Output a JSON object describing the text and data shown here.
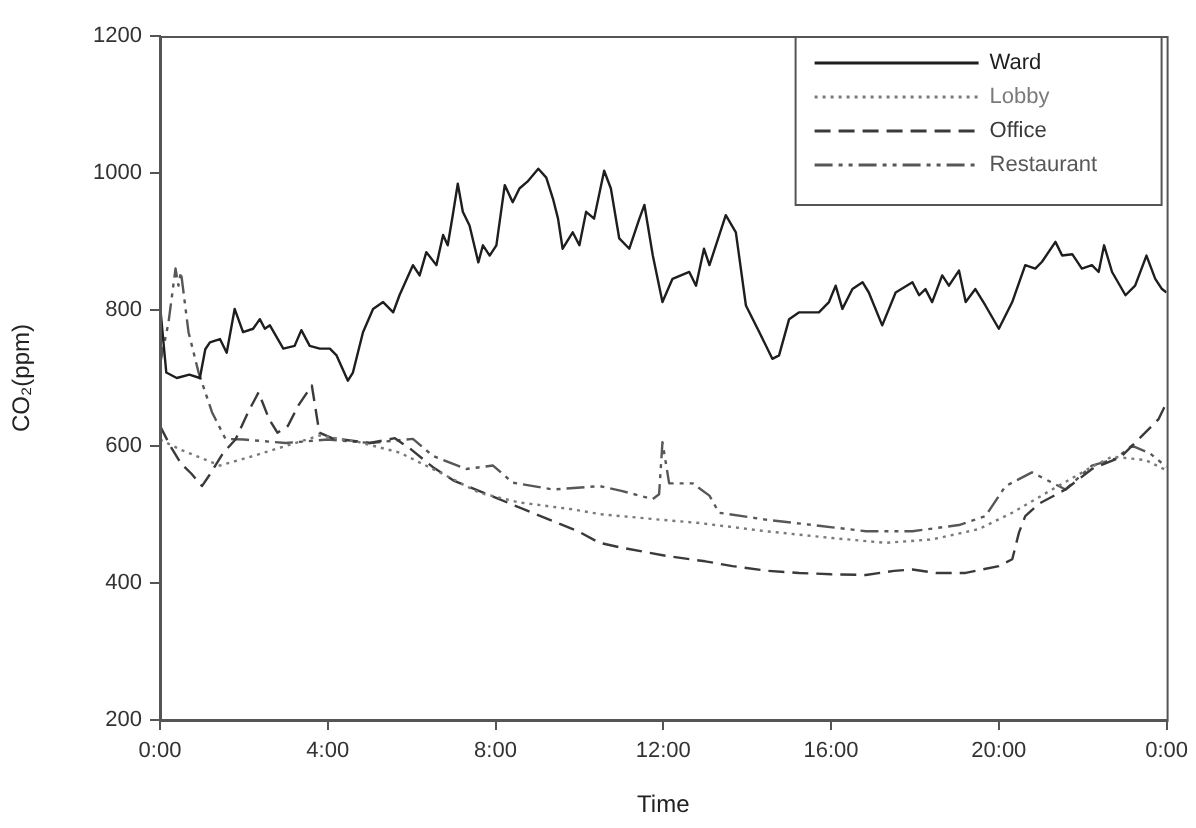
{
  "chart_data": {
    "type": "line",
    "xlabel": "Time",
    "ylabel": "CO₂(ppm)",
    "legend": "top right",
    "xlim": [
      0,
      24
    ],
    "xticks": [
      {
        "value": 0,
        "label": "0:00"
      },
      {
        "value": 4,
        "label": "4:00"
      },
      {
        "value": 8,
        "label": "8:00"
      },
      {
        "value": 12,
        "label": "12:00"
      },
      {
        "value": 16,
        "label": "16:00"
      },
      {
        "value": 20,
        "label": "20:00"
      },
      {
        "value": 24,
        "label": "0:00"
      }
    ],
    "ylim": [
      200,
      1200
    ],
    "yticks": [
      200,
      400,
      600,
      800,
      1000,
      1200
    ],
    "series": [
      {
        "name": "Ward",
        "color": "#1e1e1e",
        "line_style": "solid",
        "x": [
          0,
          0.15,
          0.4,
          0.7,
          0.95,
          1.08,
          1.19,
          1.43,
          1.59,
          1.78,
          1.98,
          2.22,
          2.38,
          2.5,
          2.62,
          2.94,
          3.21,
          3.37,
          3.57,
          3.81,
          4.05,
          4.21,
          4.48,
          4.6,
          4.84,
          5.08,
          5.32,
          5.56,
          5.71,
          6.03,
          6.19,
          6.35,
          6.59,
          6.75,
          6.86,
          6.98,
          7.1,
          7.22,
          7.38,
          7.59,
          7.7,
          7.86,
          8.02,
          8.22,
          8.41,
          8.57,
          8.76,
          9.02,
          9.21,
          9.37,
          9.49,
          9.6,
          9.84,
          10,
          10.16,
          10.35,
          10.59,
          10.75,
          10.95,
          11.19,
          11.43,
          11.55,
          11.75,
          11.98,
          12.22,
          12.62,
          12.78,
          12.97,
          13.1,
          13.49,
          13.73,
          13.97,
          14.29,
          14.6,
          14.76,
          15,
          15.24,
          15.71,
          15.95,
          16.11,
          16.27,
          16.51,
          16.75,
          16.9,
          17.22,
          17.54,
          17.94,
          18.1,
          18.25,
          18.41,
          18.65,
          18.81,
          19.05,
          19.21,
          19.44,
          19.68,
          20,
          20.32,
          20.63,
          20.87,
          21.03,
          21.35,
          21.51,
          21.75,
          21.98,
          22.22,
          22.38,
          22.51,
          22.7,
          23.02,
          23.25,
          23.52,
          23.73,
          23.89,
          24
        ],
        "values": [
          807,
          708,
          700,
          705,
          700,
          742,
          752,
          757,
          737,
          801,
          767,
          772,
          786,
          772,
          777,
          743,
          747,
          770,
          747,
          743,
          743,
          733,
          696,
          708,
          767,
          801,
          811,
          796,
          821,
          865,
          850,
          884,
          865,
          909,
          894,
          938,
          984,
          943,
          923,
          869,
          894,
          879,
          894,
          982,
          957,
          977,
          987,
          1006,
          993,
          962,
          933,
          889,
          913,
          894,
          943,
          933,
          1003,
          977,
          904,
          889,
          933,
          953,
          879,
          811,
          845,
          855,
          835,
          889,
          865,
          938,
          913,
          806,
          767,
          728,
          733,
          786,
          796,
          796,
          811,
          835,
          801,
          830,
          840,
          825,
          777,
          825,
          840,
          821,
          830,
          811,
          850,
          835,
          857,
          811,
          830,
          806,
          772,
          811,
          865,
          860,
          870,
          899,
          879,
          881,
          860,
          865,
          855,
          894,
          855,
          821,
          835,
          879,
          845,
          830,
          825
        ]
      },
      {
        "name": "Lobby",
        "color": "#7a7a7a",
        "line_style": "dotted",
        "x": [
          0,
          0.5,
          1.43,
          2.22,
          3.02,
          3.81,
          4.76,
          5.71,
          6.67,
          7.62,
          8.57,
          9.84,
          10.48,
          11.9,
          12.86,
          14.44,
          16.03,
          17.3,
          18.41,
          19.52,
          20.32,
          21.27,
          22.22,
          22.7,
          23.5,
          24
        ],
        "values": [
          610,
          595,
          572,
          586,
          601,
          616,
          606,
          591,
          562,
          532,
          518,
          508,
          501,
          493,
          488,
          476,
          466,
          459,
          464,
          479,
          503,
          537,
          570,
          585,
          580,
          565
        ]
      },
      {
        "name": "Office",
        "color": "#3a3a3a",
        "line_style": "dashed",
        "x": [
          0,
          0.25,
          0.5,
          0.75,
          1,
          1.2,
          1.5,
          1.8,
          2.1,
          2.35,
          2.6,
          2.8,
          3.05,
          3.3,
          3.62,
          3.8,
          4.1,
          5,
          5.6,
          6,
          6.5,
          7,
          8,
          9,
          10,
          10.48,
          11,
          12.06,
          13,
          13.65,
          14.5,
          15.24,
          16,
          16.83,
          17.5,
          17.94,
          18.5,
          19.21,
          20,
          20.32,
          20.48,
          20.63,
          20.95,
          21.59,
          22.22,
          22.9,
          23.49,
          23.81,
          24
        ],
        "values": [
          630,
          600,
          575,
          560,
          542,
          560,
          590,
          610,
          650,
          679,
          640,
          620,
          630,
          660,
          689,
          620,
          612,
          605,
          612,
          595,
          570,
          550,
          525,
          500,
          475,
          459,
          452,
          440,
          432,
          425,
          418,
          415,
          413,
          412,
          418,
          420,
          415,
          415,
          425,
          435,
          474,
          498,
          516,
          537,
          567,
          584,
          620,
          640,
          664
        ]
      },
      {
        "name": "Restaurant",
        "color": "#575757",
        "line_style": "dashdot",
        "x": [
          0,
          0.2,
          0.37,
          0.44,
          0.5,
          0.68,
          0.92,
          1.24,
          1.56,
          2,
          3,
          4,
          5,
          6.03,
          6.51,
          7.3,
          7.94,
          8.41,
          9.37,
          10.48,
          11,
          11.75,
          11.9,
          11.98,
          12.14,
          12.7,
          13.1,
          13.33,
          14.44,
          15.71,
          16.83,
          17.94,
          19.05,
          19.68,
          20.16,
          20.79,
          21.27,
          21.59,
          22.22,
          22.78,
          23.17,
          23.6,
          24
        ],
        "values": [
          720,
          780,
          860,
          835,
          855,
          767,
          708,
          650,
          611,
          610,
          605,
          610,
          605,
          611,
          586,
          567,
          572,
          547,
          537,
          542,
          535,
          523,
          530,
          606,
          546,
          546,
          528,
          503,
          493,
          484,
          476,
          476,
          485,
          498,
          542,
          562,
          547,
          537,
          572,
          582,
          601,
          590,
          570
        ]
      }
    ]
  }
}
